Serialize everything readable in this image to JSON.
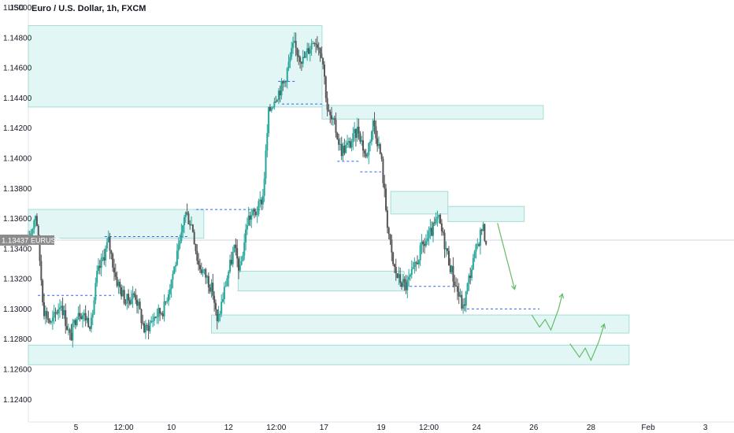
{
  "header": {
    "title": "Euro / U.S. Dollar, 1h, FXCM",
    "currency_label": "USD"
  },
  "price_tag": {
    "symbol": "EURUSD",
    "value": "1.13437"
  },
  "colors": {
    "zone_fill": "#e2f7f5",
    "zone_stroke": "#a5dcd6",
    "candle_up": "#26a69a",
    "candle_down": "#555555",
    "level_line": "#2962ff",
    "projection": "#66bb6a",
    "price_tag_bg": "#8c8c8c"
  },
  "chart_data": {
    "type": "candlestick",
    "title": "Euro / U.S. Dollar, 1h, FXCM",
    "ylabel": "USD",
    "ylim": [
      1.1225,
      1.1505
    ],
    "yticks": [
      "1.15000",
      "1.14800",
      "1.14600",
      "1.14400",
      "1.14200",
      "1.14000",
      "1.13800",
      "1.13600",
      "1.13400",
      "1.13200",
      "1.13000",
      "1.12800",
      "1.12600",
      "1.12400"
    ],
    "xlim": [
      0,
      37
    ],
    "xticks": [
      {
        "label": "5",
        "t": 2.5
      },
      {
        "label": "12:00",
        "t": 5
      },
      {
        "label": "10",
        "t": 7.5
      },
      {
        "label": "12",
        "t": 10.5
      },
      {
        "label": "12:00",
        "t": 13
      },
      {
        "label": "17",
        "t": 15.5
      },
      {
        "label": "19",
        "t": 18.5
      },
      {
        "label": "12:00",
        "t": 21
      },
      {
        "label": "24",
        "t": 23.5
      },
      {
        "label": "26",
        "t": 26.5
      },
      {
        "label": "28",
        "t": 29.5
      },
      {
        "label": "Feb",
        "t": 32.5
      },
      {
        "label": "3",
        "t": 35.5
      }
    ],
    "price_path": [
      [
        0,
        1.1343
      ],
      [
        0.4,
        1.1365
      ],
      [
        0.8,
        1.13
      ],
      [
        1.2,
        1.129
      ],
      [
        1.7,
        1.1305
      ],
      [
        2.2,
        1.128
      ],
      [
        2.6,
        1.13
      ],
      [
        3.3,
        1.129
      ],
      [
        3.6,
        1.1322
      ],
      [
        4.2,
        1.1345
      ],
      [
        4.6,
        1.132
      ],
      [
        5.1,
        1.1305
      ],
      [
        5.6,
        1.131
      ],
      [
        6.1,
        1.1285
      ],
      [
        6.6,
        1.1295
      ],
      [
        7.1,
        1.13
      ],
      [
        7.6,
        1.1325
      ],
      [
        8.0,
        1.1345
      ],
      [
        8.2,
        1.1365
      ],
      [
        8.6,
        1.1355
      ],
      [
        8.9,
        1.133
      ],
      [
        9.4,
        1.132
      ],
      [
        9.7,
        1.131
      ],
      [
        9.8,
        1.13
      ],
      [
        9.9,
        1.129
      ],
      [
        10.4,
        1.132
      ],
      [
        10.8,
        1.134
      ],
      [
        11.1,
        1.1325
      ],
      [
        11.5,
        1.136
      ],
      [
        12.0,
        1.1365
      ],
      [
        12.3,
        1.1375
      ],
      [
        12.6,
        1.143
      ],
      [
        12.9,
        1.144
      ],
      [
        13.4,
        1.145
      ],
      [
        13.9,
        1.1475
      ],
      [
        14.4,
        1.1465
      ],
      [
        15.0,
        1.148
      ],
      [
        15.4,
        1.147
      ],
      [
        15.7,
        1.143
      ],
      [
        16.1,
        1.142
      ],
      [
        16.4,
        1.1405
      ],
      [
        16.9,
        1.141
      ],
      [
        17.3,
        1.142
      ],
      [
        17.7,
        1.14
      ],
      [
        18.1,
        1.1425
      ],
      [
        18.5,
        1.14
      ],
      [
        18.8,
        1.136
      ],
      [
        19.1,
        1.133
      ],
      [
        19.4,
        1.132
      ],
      [
        19.8,
        1.1315
      ],
      [
        20.2,
        1.1325
      ],
      [
        20.6,
        1.134
      ],
      [
        21.1,
        1.135
      ],
      [
        21.5,
        1.136
      ],
      [
        21.9,
        1.134
      ],
      [
        22.3,
        1.132
      ],
      [
        22.6,
        1.1308
      ],
      [
        22.8,
        1.13
      ],
      [
        23.1,
        1.132
      ],
      [
        23.5,
        1.134
      ],
      [
        23.8,
        1.1355
      ],
      [
        24.0,
        1.1345
      ]
    ],
    "zones": [
      {
        "y_top": 1.1488,
        "y_bottom": 1.1434,
        "t_start": 0,
        "t_end": 15.4
      },
      {
        "y_top": 1.1435,
        "y_bottom": 1.1426,
        "t_start": 15.4,
        "t_end": 27.0
      },
      {
        "y_top": 1.1378,
        "y_bottom": 1.1363,
        "t_start": 19.0,
        "t_end": 22.0
      },
      {
        "y_top": 1.1368,
        "y_bottom": 1.1358,
        "t_start": 22.0,
        "t_end": 26.0
      },
      {
        "y_top": 1.1366,
        "y_bottom": 1.1347,
        "t_start": 0,
        "t_end": 9.2
      },
      {
        "y_top": 1.1325,
        "y_bottom": 1.1312,
        "t_start": 11.0,
        "t_end": 19.7
      },
      {
        "y_top": 1.1296,
        "y_bottom": 1.1284,
        "t_start": 9.6,
        "t_end": 31.5
      },
      {
        "y_top": 1.1276,
        "y_bottom": 1.1263,
        "t_start": 0,
        "t_end": 31.5
      }
    ],
    "levels": [
      {
        "y": 1.1309,
        "t_start": 0.5,
        "t_end": 4.5
      },
      {
        "y": 1.1348,
        "t_start": 4.0,
        "t_end": 8.4
      },
      {
        "y": 1.1366,
        "t_start": 8.8,
        "t_end": 12.3
      },
      {
        "y": 1.1451,
        "t_start": 13.1,
        "t_end": 14.0
      },
      {
        "y": 1.1436,
        "t_start": 13.3,
        "t_end": 15.4
      },
      {
        "y": 1.1398,
        "t_start": 16.2,
        "t_end": 17.4
      },
      {
        "y": 1.1391,
        "t_start": 17.4,
        "t_end": 18.5
      },
      {
        "y": 1.1315,
        "t_start": 19.5,
        "t_end": 22.5
      },
      {
        "y": 1.13,
        "t_start": 23.0,
        "t_end": 26.8
      }
    ],
    "projections": [
      [
        [
          24.6,
          1.1357
        ],
        [
          25.5,
          1.1313
        ]
      ],
      [
        [
          26.4,
          1.1296
        ],
        [
          26.8,
          1.1288
        ],
        [
          27.1,
          1.1293
        ],
        [
          27.4,
          1.1286
        ],
        [
          27.8,
          1.13
        ],
        [
          28.0,
          1.131
        ]
      ],
      [
        [
          28.4,
          1.1277
        ],
        [
          28.9,
          1.1268
        ],
        [
          29.2,
          1.1274
        ],
        [
          29.5,
          1.1266
        ],
        [
          29.9,
          1.1278
        ],
        [
          30.2,
          1.129
        ]
      ]
    ]
  }
}
